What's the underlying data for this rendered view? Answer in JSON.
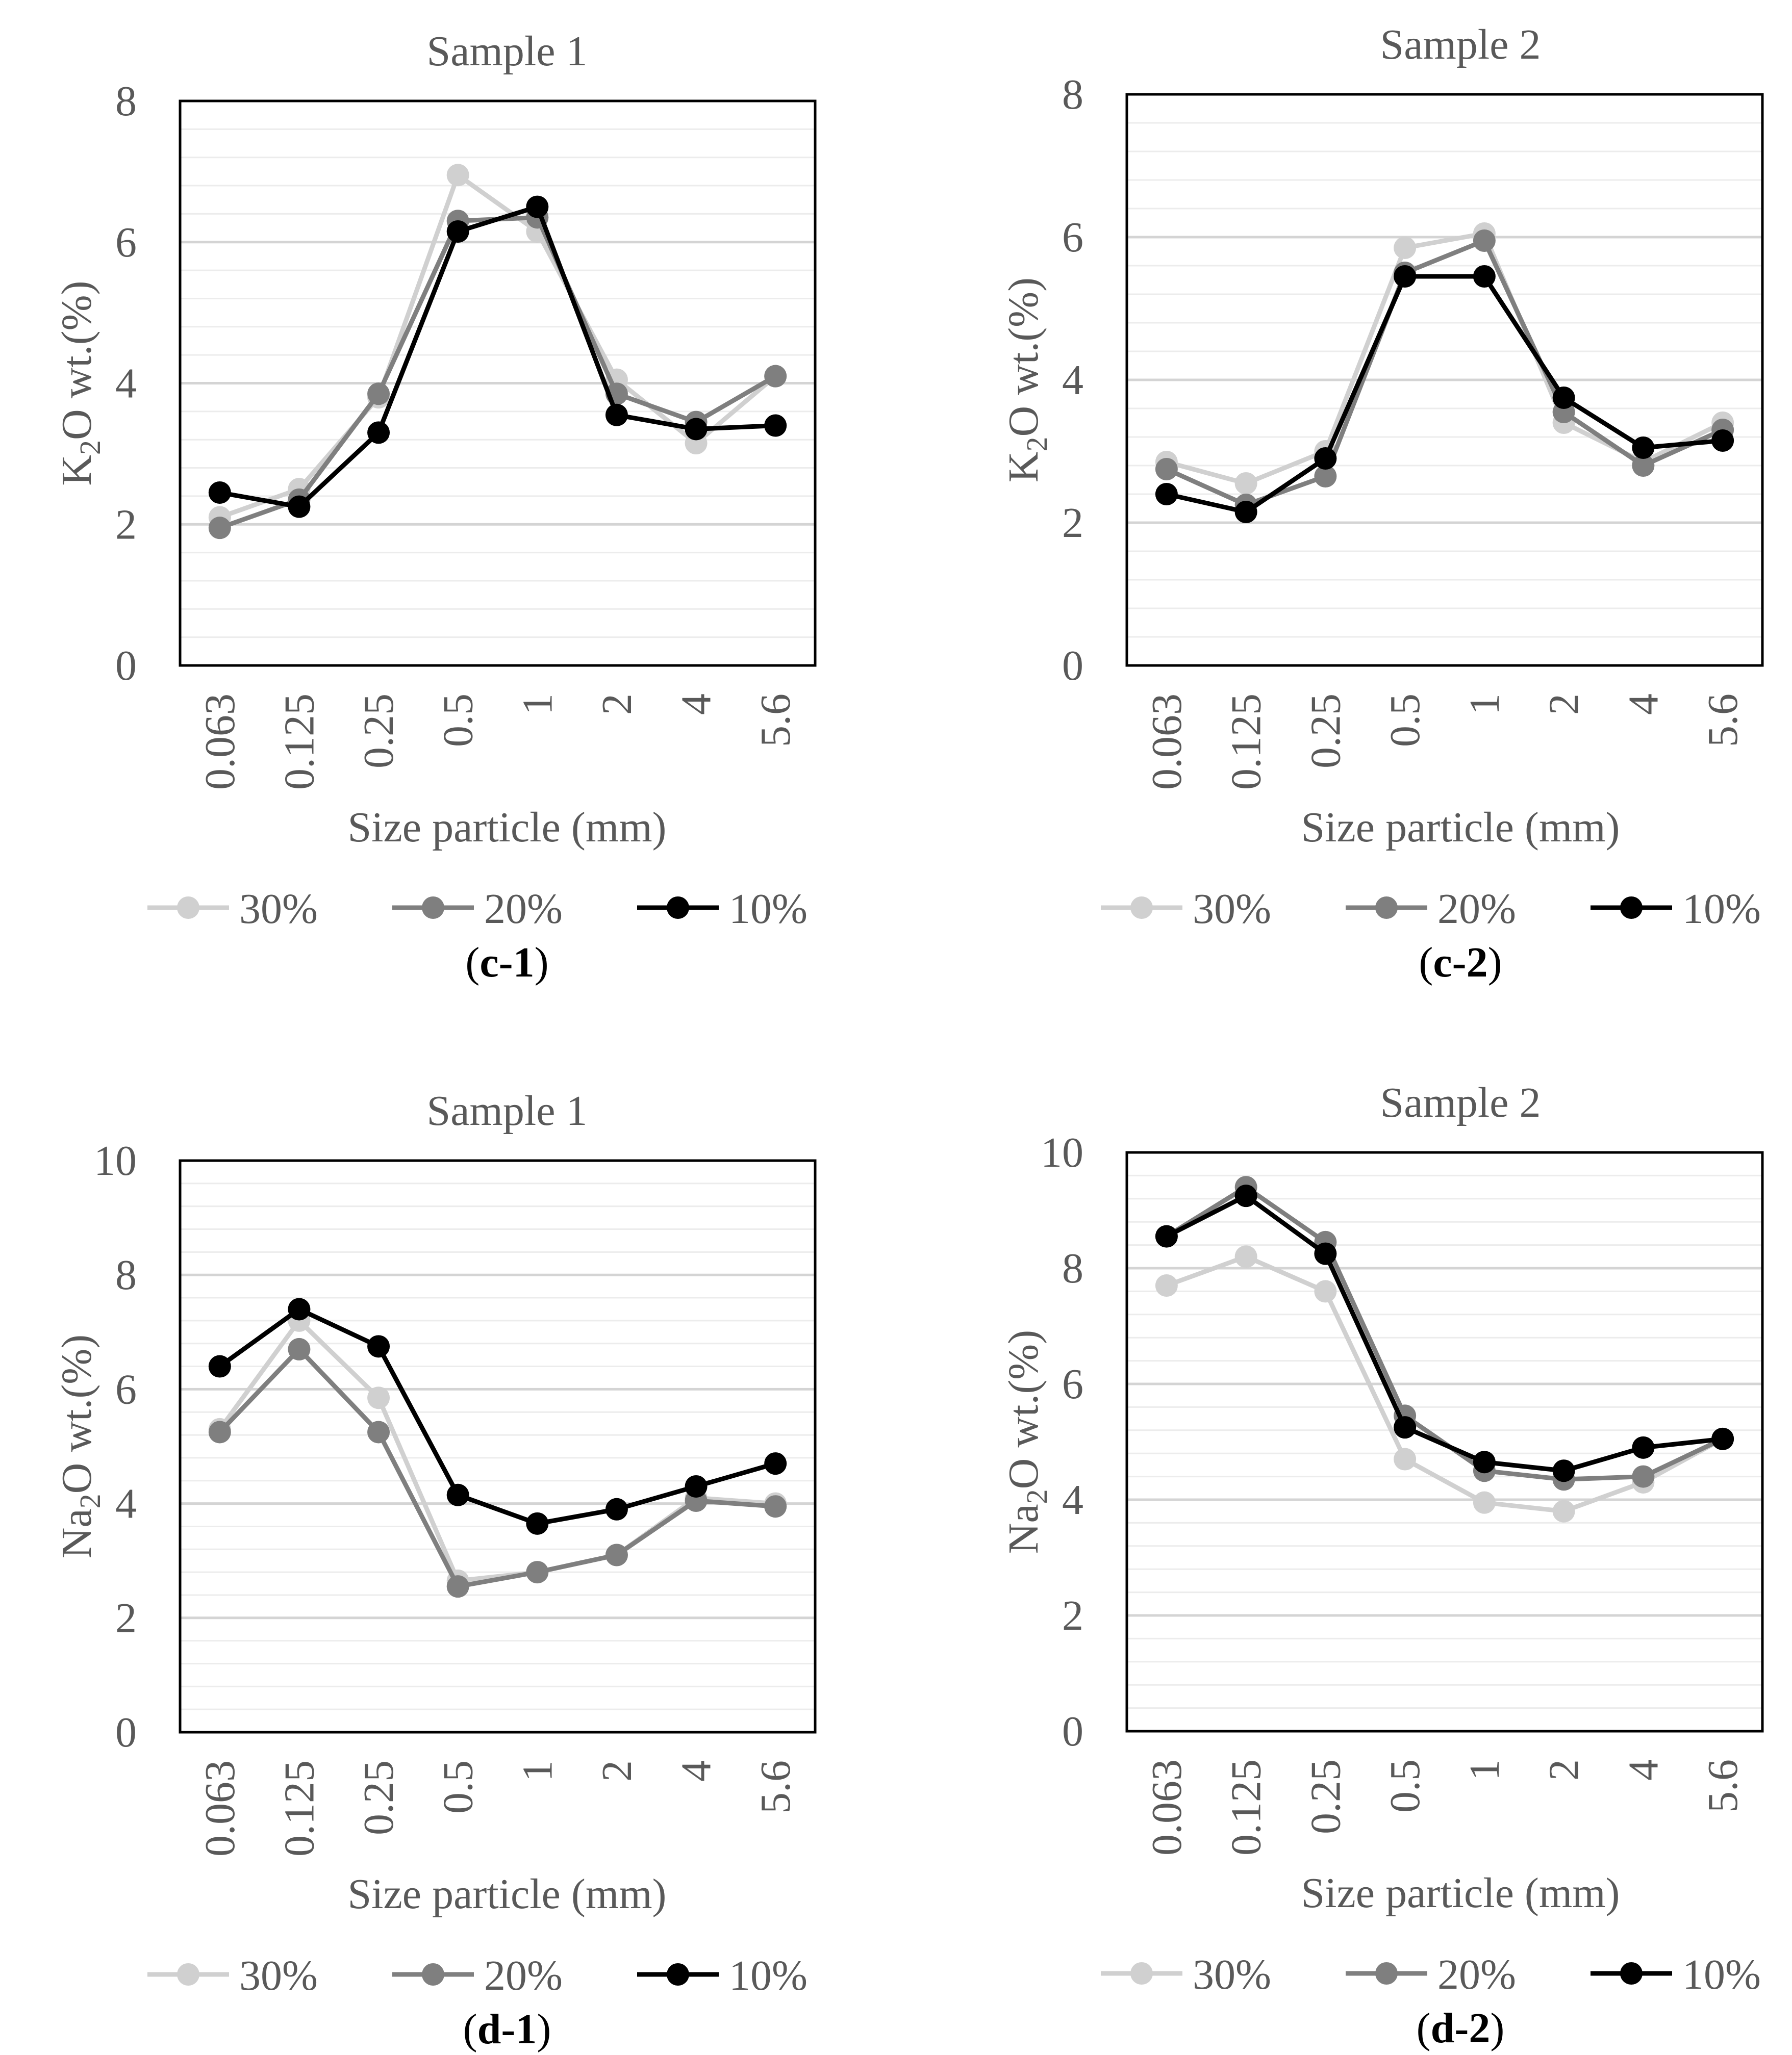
{
  "figure": {
    "background": "#ffffff"
  },
  "chart_data": [
    {
      "id": "c-1",
      "type": "line",
      "title": "Sample 1",
      "panel_label": "c-1",
      "xlabel": "Size particle (mm)",
      "ylabel_main": "K",
      "ylabel_sub": "2",
      "ylabel_rest": "O wt.(%)",
      "categories": [
        "0.063",
        "0.125",
        "0.25",
        "0.5",
        "1",
        "2",
        "4",
        "5.6"
      ],
      "ylim": [
        0,
        8
      ],
      "yticks": [
        0,
        2,
        4,
        6,
        8
      ],
      "minor_step": 0.4,
      "series": [
        {
          "name": "30%",
          "color": "#d0d0d0",
          "values": [
            2.1,
            2.5,
            3.8,
            6.95,
            6.15,
            4.05,
            3.15,
            4.1
          ]
        },
        {
          "name": "20%",
          "color": "#7f7f7f",
          "values": [
            1.95,
            2.35,
            3.85,
            6.3,
            6.35,
            3.85,
            3.45,
            4.1
          ]
        },
        {
          "name": "10%",
          "color": "#000000",
          "values": [
            2.45,
            2.25,
            3.3,
            6.15,
            6.5,
            3.55,
            3.35,
            3.4
          ]
        }
      ]
    },
    {
      "id": "c-2",
      "type": "line",
      "title": "Sample 2",
      "panel_label": "c-2",
      "xlabel": "Size particle (mm)",
      "ylabel_main": "K",
      "ylabel_sub": "2",
      "ylabel_rest": "O wt.(%)",
      "categories": [
        "0.063",
        "0.125",
        "0.25",
        "0.5",
        "1",
        "2",
        "4",
        "5.6"
      ],
      "ylim": [
        0,
        8
      ],
      "yticks": [
        0,
        2,
        4,
        6,
        8
      ],
      "minor_step": 0.4,
      "series": [
        {
          "name": "30%",
          "color": "#d0d0d0",
          "values": [
            2.85,
            2.55,
            3.0,
            5.85,
            6.05,
            3.4,
            2.85,
            3.4
          ]
        },
        {
          "name": "20%",
          "color": "#7f7f7f",
          "values": [
            2.75,
            2.25,
            2.65,
            5.5,
            5.95,
            3.55,
            2.8,
            3.3
          ]
        },
        {
          "name": "10%",
          "color": "#000000",
          "values": [
            2.4,
            2.15,
            2.9,
            5.45,
            5.45,
            3.75,
            3.05,
            3.15
          ]
        }
      ]
    },
    {
      "id": "d-1",
      "type": "line",
      "title": "Sample 1",
      "panel_label": "d-1",
      "xlabel": "Size particle (mm)",
      "ylabel_main": "Na",
      "ylabel_sub": "2",
      "ylabel_rest": "O wt.(%)",
      "categories": [
        "0.063",
        "0.125",
        "0.25",
        "0.5",
        "1",
        "2",
        "4",
        "5.6"
      ],
      "ylim": [
        0,
        10
      ],
      "yticks": [
        0,
        2,
        4,
        6,
        8,
        10
      ],
      "minor_step": 0.4,
      "series": [
        {
          "name": "30%",
          "color": "#d0d0d0",
          "values": [
            5.3,
            7.2,
            5.85,
            2.65,
            2.8,
            3.1,
            4.1,
            4.0
          ]
        },
        {
          "name": "20%",
          "color": "#7f7f7f",
          "values": [
            5.25,
            6.7,
            5.25,
            2.55,
            2.8,
            3.1,
            4.05,
            3.95
          ]
        },
        {
          "name": "10%",
          "color": "#000000",
          "values": [
            6.4,
            7.4,
            6.75,
            4.15,
            3.65,
            3.9,
            4.3,
            4.7
          ]
        }
      ]
    },
    {
      "id": "d-2",
      "type": "line",
      "title": "Sample 2",
      "panel_label": "d-2",
      "xlabel": "Size particle (mm)",
      "ylabel_main": "Na",
      "ylabel_sub": "2",
      "ylabel_rest": "O wt.(%)",
      "categories": [
        "0.063",
        "0.125",
        "0.25",
        "0.5",
        "1",
        "2",
        "4",
        "5.6"
      ],
      "ylim": [
        0,
        10
      ],
      "yticks": [
        0,
        2,
        4,
        6,
        8,
        10
      ],
      "minor_step": 0.4,
      "series": [
        {
          "name": "30%",
          "color": "#d0d0d0",
          "values": [
            7.7,
            8.2,
            7.6,
            4.7,
            3.95,
            3.8,
            4.3,
            5.05
          ]
        },
        {
          "name": "20%",
          "color": "#7f7f7f",
          "values": [
            8.55,
            9.4,
            8.45,
            5.45,
            4.5,
            4.35,
            4.4,
            5.05
          ]
        },
        {
          "name": "10%",
          "color": "#000000",
          "values": [
            8.55,
            9.25,
            8.25,
            5.25,
            4.65,
            4.5,
            4.9,
            5.05
          ]
        }
      ]
    }
  ]
}
